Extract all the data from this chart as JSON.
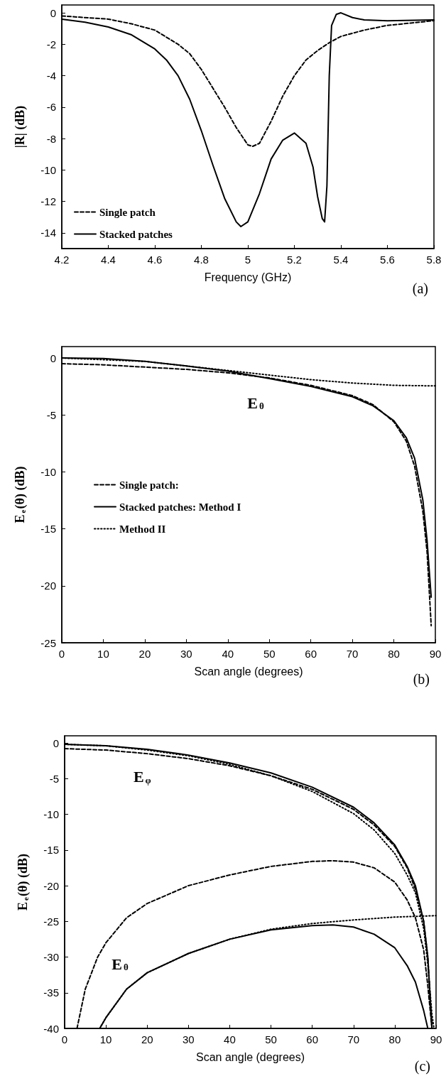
{
  "chart_data": [
    {
      "type": "line",
      "xlabel": "Frequency (GHz)",
      "ylabel": "|R| (dB)",
      "xlim": [
        4.2,
        5.8
      ],
      "xticks": [
        4.2,
        4.4,
        4.6,
        4.8,
        5,
        5.2,
        5.4,
        5.6,
        5.8
      ],
      "ylim": [
        -15,
        0.5
      ],
      "yticks": [
        -14,
        -12,
        -10,
        -8,
        -6,
        -4,
        -2,
        0
      ],
      "grid": false,
      "legend": "bottom left",
      "marker": "none",
      "annotations": [
        "(a)"
      ],
      "series": [
        {
          "name": "Single patch",
          "color": "#000000",
          "line_style": "dashed",
          "x": [
            4.2,
            4.4,
            4.5,
            4.6,
            4.7,
            4.75,
            4.8,
            4.85,
            4.9,
            4.95,
            5.0,
            5.02,
            5.05,
            5.1,
            5.15,
            5.2,
            5.25,
            5.3,
            5.35,
            5.4,
            5.5,
            5.6,
            5.7,
            5.8
          ],
          "values": [
            -0.2,
            -0.4,
            -0.7,
            -1.1,
            -2.0,
            -2.6,
            -3.6,
            -4.8,
            -6.0,
            -7.3,
            -8.4,
            -8.5,
            -8.3,
            -6.9,
            -5.3,
            -4.0,
            -3.0,
            -2.4,
            -1.9,
            -1.5,
            -1.1,
            -0.8,
            -0.65,
            -0.5
          ]
        },
        {
          "name": "Stacked patches",
          "color": "#000000",
          "line_style": "solid",
          "x": [
            4.2,
            4.3,
            4.4,
            4.5,
            4.6,
            4.65,
            4.7,
            4.75,
            4.8,
            4.85,
            4.9,
            4.95,
            4.97,
            5.0,
            5.05,
            5.1,
            5.15,
            5.2,
            5.25,
            5.28,
            5.3,
            5.32,
            5.33,
            5.34,
            5.35,
            5.36,
            5.38,
            5.4,
            5.45,
            5.5,
            5.6,
            5.8
          ],
          "values": [
            -0.4,
            -0.6,
            -0.9,
            -1.4,
            -2.3,
            -3.0,
            -4.0,
            -5.5,
            -7.5,
            -9.7,
            -11.8,
            -13.3,
            -13.6,
            -13.3,
            -11.5,
            -9.3,
            -8.1,
            -7.65,
            -8.3,
            -9.8,
            -11.7,
            -13.1,
            -13.3,
            -11,
            -4,
            -0.8,
            -0.1,
            0.0,
            -0.3,
            -0.45,
            -0.5,
            -0.45
          ]
        }
      ]
    },
    {
      "type": "line",
      "xlabel": "Scan angle (degrees)",
      "ylabel": "E$_{e}$(θ) (dB)",
      "xlim": [
        0,
        90
      ],
      "xticks": [
        0,
        10,
        20,
        30,
        40,
        50,
        60,
        70,
        80,
        90
      ],
      "ylim": [
        -25,
        1
      ],
      "yticks": [
        -25,
        -20,
        -15,
        -10,
        -5,
        0
      ],
      "grid": false,
      "legend": "left",
      "marker": "none",
      "annotations": [
        "E$_{θ}$",
        "(b)"
      ],
      "series": [
        {
          "name": "Single patch:",
          "color": "#000000",
          "line_style": "dashed",
          "x": [
            0,
            10,
            20,
            30,
            40,
            50,
            60,
            70,
            75,
            80,
            83,
            85,
            87,
            88,
            89
          ],
          "values": [
            -0.5,
            -0.6,
            -0.8,
            -1.0,
            -1.3,
            -1.75,
            -2.4,
            -3.3,
            -4.1,
            -5.6,
            -7.3,
            -9.5,
            -13.5,
            -17,
            -23.5
          ]
        },
        {
          "name": "Stacked patches: Method I",
          "color": "#000000",
          "line_style": "solid",
          "x": [
            0,
            10,
            20,
            30,
            40,
            50,
            60,
            70,
            75,
            80,
            83,
            85,
            87,
            88,
            89
          ],
          "values": [
            0,
            -0.05,
            -0.3,
            -0.7,
            -1.15,
            -1.8,
            -2.5,
            -3.4,
            -4.2,
            -5.5,
            -7,
            -8.8,
            -12.5,
            -16,
            -21
          ]
        },
        {
          "name": "Method II",
          "color": "#000000",
          "line_style": "dotted",
          "x": [
            0,
            20,
            30,
            40,
            50,
            60,
            70,
            80,
            90
          ],
          "values": [
            0,
            -0.3,
            -0.7,
            -1.1,
            -1.5,
            -1.9,
            -2.2,
            -2.4,
            -2.45
          ]
        }
      ]
    },
    {
      "type": "line",
      "xlabel": "Scan angle (degrees)",
      "ylabel": "E$_{e}$(θ) (dB)",
      "xlim": [
        0,
        90
      ],
      "xticks": [
        0,
        10,
        20,
        30,
        40,
        50,
        60,
        70,
        80,
        90
      ],
      "ylim": [
        -40,
        1
      ],
      "yticks": [
        -40,
        -35,
        -30,
        -25,
        -20,
        -15,
        -10,
        -5,
        0
      ],
      "grid": false,
      "legend": false,
      "marker": "none",
      "annotations": [
        "E$_{φ}$",
        "E$_{θ}$",
        "(c)"
      ],
      "series": [
        {
          "color": "#000000",
          "line_style": "dashed",
          "x": [
            0,
            10,
            20,
            30,
            40,
            50,
            60,
            70,
            75,
            80,
            83,
            85,
            87,
            88,
            89
          ],
          "values": [
            -0.8,
            -1.0,
            -1.5,
            -2.2,
            -3.2,
            -4.6,
            -6.5,
            -9.3,
            -11.5,
            -14.5,
            -17.5,
            -20.5,
            -25,
            -30,
            -40
          ]
        },
        {
          "color": "#000000",
          "line_style": "solid",
          "x": [
            0,
            10,
            20,
            30,
            40,
            50,
            60,
            70,
            75,
            80,
            83,
            85,
            87,
            88,
            89
          ],
          "values": [
            -0.2,
            -0.4,
            -0.9,
            -1.7,
            -2.8,
            -4.2,
            -6.2,
            -9.0,
            -11.2,
            -14.3,
            -17.3,
            -20,
            -25,
            -30,
            -40
          ]
        },
        {
          "color": "#000000",
          "line_style": "dotted",
          "x": [
            0,
            10,
            20,
            30,
            40,
            50,
            60,
            70,
            75,
            80,
            83,
            85,
            87,
            88,
            89,
            89.5
          ],
          "values": [
            -0.2,
            -0.4,
            -1.0,
            -1.8,
            -3.0,
            -4.6,
            -6.8,
            -9.9,
            -12.2,
            -15.5,
            -18.5,
            -21,
            -26,
            -31,
            -38,
            -40
          ]
        },
        {
          "color": "#000000",
          "line_style": "dashed",
          "x": [
            3,
            5,
            8,
            10,
            15,
            20,
            30,
            40,
            50,
            60,
            65,
            70,
            75,
            80,
            83,
            85,
            87,
            88,
            89
          ],
          "values": [
            -40,
            -34.5,
            -30,
            -28,
            -24.5,
            -22.5,
            -20.0,
            -18.5,
            -17.3,
            -16.6,
            -16.5,
            -16.7,
            -17.5,
            -19.5,
            -22,
            -24.5,
            -29,
            -34,
            -40
          ]
        },
        {
          "color": "#000000",
          "line_style": "solid",
          "x": [
            8.5,
            10,
            15,
            20,
            30,
            40,
            50,
            60,
            65,
            70,
            75,
            80,
            83,
            85,
            87,
            88
          ],
          "values": [
            -40,
            -38.5,
            -34.5,
            -32.2,
            -29.5,
            -27.5,
            -26.2,
            -25.6,
            -25.5,
            -25.8,
            -26.8,
            -28.7,
            -31.2,
            -33.5,
            -37.5,
            -40
          ]
        },
        {
          "color": "#000000",
          "line_style": "dotted",
          "x": [
            8.5,
            10,
            15,
            20,
            30,
            40,
            50,
            60,
            70,
            80,
            90
          ],
          "values": [
            -40,
            -38.5,
            -34.5,
            -32.2,
            -29.5,
            -27.5,
            -26.1,
            -25.3,
            -24.8,
            -24.4,
            -24.2
          ]
        }
      ]
    }
  ]
}
